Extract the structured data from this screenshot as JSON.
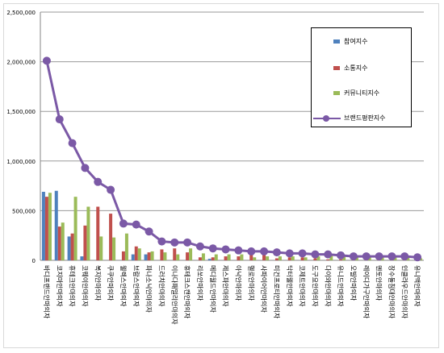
{
  "chart_data": {
    "type": "bar",
    "title": "",
    "xlabel": "",
    "ylabel": "",
    "ylim": [
      0,
      2500000
    ],
    "yticks": [
      "0",
      "500,000",
      "1,000,000",
      "1,500,000",
      "2,000,000",
      "2,500,000"
    ],
    "grid": true,
    "legend_position": "top-right",
    "categories": [
      "바디프랜드안마의자",
      "코지마안마의자",
      "휴테크안마의자",
      "코웨이안마의자",
      "복지안마의자",
      "쿠쿠안마의자",
      "웰렉스안마의자",
      "브람스안마의자",
      "파나소닉안마의자",
      "드러치안마의자",
      "이나다패밀리안마의자",
      "휴테크스캔안마의자",
      "리쏘안마의자",
      "메디월드안마의자",
      "제스파안마의자",
      "아낙안마의자",
      "헬로안마의자",
      "사파이어안마의자",
      "미건프로티안마의자",
      "닥터웰안마의자",
      "코제트안마의자",
      "도구요안마의자",
      "다이와안마의자",
      "유니드안마의자",
      "오빌안마의자",
      "레이디가구안마의자",
      "멘토안마의자",
      "장수돌침대안마의자",
      "인클라우드안마의자",
      "유니맥안마의자"
    ],
    "series": [
      {
        "name": "참여지수",
        "type": "bar",
        "color": "#4f81bd",
        "values": [
          690000,
          700000,
          240000,
          40000,
          0,
          0,
          0,
          60000,
          60000,
          0,
          0,
          0,
          0,
          15000,
          0,
          0,
          0,
          0,
          0,
          0,
          0,
          0,
          0,
          0,
          0,
          0,
          0,
          0,
          0,
          0
        ]
      },
      {
        "name": "소통지수",
        "type": "bar",
        "color": "#c0504d",
        "values": [
          640000,
          340000,
          270000,
          350000,
          540000,
          470000,
          90000,
          140000,
          80000,
          110000,
          120000,
          80000,
          30000,
          30000,
          40000,
          40000,
          60000,
          60000,
          20000,
          30000,
          30000,
          20000,
          10000,
          10000,
          10000,
          10000,
          10000,
          10000,
          10000,
          10000
        ]
      },
      {
        "name": "커뮤니티지수",
        "type": "bar",
        "color": "#9bbb59",
        "values": [
          680000,
          380000,
          640000,
          540000,
          240000,
          230000,
          270000,
          120000,
          90000,
          80000,
          60000,
          120000,
          70000,
          60000,
          60000,
          60000,
          30000,
          40000,
          40000,
          40000,
          30000,
          40000,
          50000,
          40000,
          30000,
          40000,
          30000,
          30000,
          30000,
          20000
        ]
      },
      {
        "name": "브랜드평판지수",
        "type": "line",
        "color": "#7b59a6",
        "values": [
          2010000,
          1420000,
          1180000,
          930000,
          790000,
          710000,
          370000,
          360000,
          290000,
          190000,
          180000,
          180000,
          140000,
          120000,
          110000,
          100000,
          90000,
          90000,
          80000,
          70000,
          70000,
          60000,
          60000,
          50000,
          40000,
          40000,
          40000,
          40000,
          40000,
          30000
        ]
      }
    ]
  }
}
